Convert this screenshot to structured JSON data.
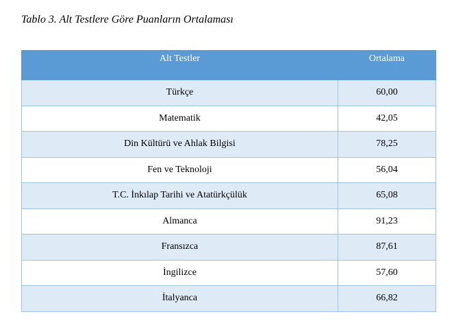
{
  "header": {
    "title": "Tablo 3. Alt Testlere Göre Puanların Ortalaması"
  },
  "table": {
    "columns": [
      "Alt Testler",
      "Ortalama"
    ],
    "rows": [
      [
        "Türkçe",
        "60,00"
      ],
      [
        "Matematik",
        "42,05"
      ],
      [
        "Din Kültürü ve Ahlak Bilgisi",
        "78,25"
      ],
      [
        "Fen ve Teknoloji",
        "56,04"
      ],
      [
        "T.C. İnkılap Tarihi ve Atatürkçülük",
        "65,08"
      ],
      [
        "Almanca",
        "91,23"
      ],
      [
        "Fransızca",
        "87,61"
      ],
      [
        "İngilizce",
        "57,60"
      ],
      [
        "İtalyanca",
        "66,82"
      ]
    ]
  }
}
